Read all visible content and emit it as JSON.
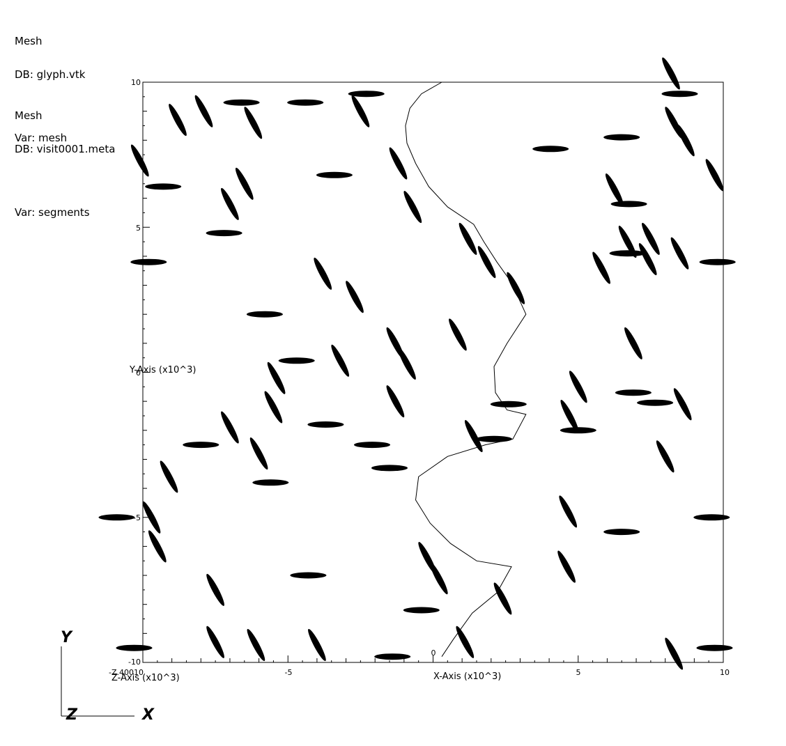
{
  "legends": [
    {
      "plot": "Mesh",
      "db": "DB: glyph.vtk",
      "var": "Var: mesh"
    },
    {
      "plot": "Mesh",
      "db": "DB: visit0001.meta",
      "var": "Var: segments"
    }
  ],
  "axes": {
    "x_title": "X-Axis (x10^3)",
    "y_title": "Y-Axis (x10^3)",
    "z_title": "Z-Axis (x10^3)",
    "x_ticks": [
      "-10",
      "-5",
      "0",
      "5",
      "10"
    ],
    "y_ticks": [
      "10",
      "5",
      "0",
      "-5",
      "-10"
    ],
    "z_tick_overlap": "-Z.40010",
    "xlim": [
      -10,
      10
    ],
    "ylim": [
      -10,
      10
    ]
  },
  "triad": {
    "y": "Y",
    "z": "Z",
    "x": "X"
  },
  "colors": {
    "background": "#ffffff",
    "ink": "#000000"
  },
  "curve": [
    [
      0.3,
      10.0
    ],
    [
      -0.4,
      9.6
    ],
    [
      -0.8,
      9.1
    ],
    [
      -0.95,
      8.5
    ],
    [
      -0.9,
      7.9
    ],
    [
      -0.6,
      7.2
    ],
    [
      -0.15,
      6.4
    ],
    [
      0.5,
      5.7
    ],
    [
      1.4,
      5.1
    ],
    [
      1.75,
      4.5
    ],
    [
      2.2,
      3.8
    ],
    [
      2.7,
      3.1
    ],
    [
      3.2,
      2.0
    ],
    [
      2.55,
      1.0
    ],
    [
      2.1,
      0.2
    ],
    [
      2.15,
      -0.7
    ],
    [
      2.55,
      -1.3
    ],
    [
      3.2,
      -1.45
    ],
    [
      2.75,
      -2.3
    ],
    [
      1.8,
      -2.5
    ],
    [
      0.5,
      -2.9
    ],
    [
      -0.5,
      -3.6
    ],
    [
      -0.6,
      -4.4
    ],
    [
      -0.1,
      -5.2
    ],
    [
      0.6,
      -5.9
    ],
    [
      1.5,
      -6.5
    ],
    [
      2.7,
      -6.7
    ],
    [
      2.2,
      -7.6
    ],
    [
      1.35,
      -8.3
    ],
    [
      0.7,
      -9.2
    ],
    [
      0.3,
      -9.8
    ]
  ],
  "glyphs": [
    [
      8.2,
      10.3,
      62
    ],
    [
      8.5,
      9.6,
      0
    ],
    [
      6.5,
      8.1,
      0
    ],
    [
      4.05,
      7.7,
      0
    ],
    [
      8.3,
      8.6,
      62
    ],
    [
      8.7,
      8.0,
      62
    ],
    [
      9.7,
      6.8,
      62
    ],
    [
      6.25,
      6.3,
      62
    ],
    [
      6.75,
      5.8,
      0
    ],
    [
      6.7,
      4.5,
      62
    ],
    [
      7.5,
      4.6,
      62
    ],
    [
      6.7,
      4.1,
      0
    ],
    [
      5.8,
      3.6,
      62
    ],
    [
      8.5,
      4.1,
      62
    ],
    [
      7.4,
      3.9,
      62
    ],
    [
      9.8,
      3.8,
      0
    ],
    [
      6.9,
      1.0,
      62
    ],
    [
      5.0,
      -0.5,
      62
    ],
    [
      6.9,
      -0.7,
      0
    ],
    [
      7.65,
      -1.05,
      0
    ],
    [
      8.6,
      -1.1,
      62
    ],
    [
      4.7,
      -1.5,
      62
    ],
    [
      5.0,
      -2.0,
      0
    ],
    [
      8.0,
      -2.9,
      62
    ],
    [
      9.6,
      -5.0,
      0
    ],
    [
      4.65,
      -4.8,
      62
    ],
    [
      6.5,
      -5.5,
      0
    ],
    [
      4.6,
      -6.7,
      62
    ],
    [
      8.3,
      -9.7,
      62
    ],
    [
      9.7,
      -9.5,
      0
    ],
    [
      -2.3,
      9.6,
      0
    ],
    [
      -2.5,
      9.0,
      62
    ],
    [
      -4.4,
      9.3,
      0
    ],
    [
      -6.6,
      9.3,
      0
    ],
    [
      -6.2,
      8.6,
      62
    ],
    [
      -7.9,
      9.0,
      62
    ],
    [
      -8.8,
      8.7,
      62
    ],
    [
      -10.1,
      7.3,
      62
    ],
    [
      -9.3,
      6.4,
      0
    ],
    [
      -1.2,
      7.2,
      62
    ],
    [
      -3.4,
      6.8,
      0
    ],
    [
      -6.5,
      6.5,
      62
    ],
    [
      -7.0,
      5.8,
      62
    ],
    [
      -0.7,
      5.7,
      62
    ],
    [
      -7.2,
      4.8,
      0
    ],
    [
      -9.8,
      3.8,
      0
    ],
    [
      -3.8,
      3.4,
      62
    ],
    [
      1.2,
      4.6,
      62
    ],
    [
      1.85,
      3.8,
      62
    ],
    [
      2.85,
      2.9,
      62
    ],
    [
      -2.7,
      2.6,
      62
    ],
    [
      -5.8,
      2.0,
      0
    ],
    [
      -1.3,
      1.0,
      62
    ],
    [
      0.85,
      1.3,
      62
    ],
    [
      -4.7,
      0.4,
      0
    ],
    [
      -3.2,
      0.4,
      62
    ],
    [
      -0.9,
      0.3,
      62
    ],
    [
      -5.4,
      -0.2,
      62
    ],
    [
      -1.3,
      -1.0,
      62
    ],
    [
      -5.5,
      -1.2,
      62
    ],
    [
      -3.7,
      -1.8,
      0
    ],
    [
      -7.0,
      -1.9,
      62
    ],
    [
      -8.0,
      -2.5,
      0
    ],
    [
      -2.1,
      -2.5,
      0
    ],
    [
      -6.0,
      -2.8,
      62
    ],
    [
      -9.1,
      -3.6,
      62
    ],
    [
      -5.6,
      -3.8,
      0
    ],
    [
      -1.5,
      -3.3,
      0
    ],
    [
      2.6,
      -1.1,
      0
    ],
    [
      1.4,
      -2.2,
      62
    ],
    [
      2.1,
      -2.3,
      0
    ],
    [
      -9.7,
      -5.0,
      62
    ],
    [
      -10.9,
      -5.0,
      0
    ],
    [
      -9.5,
      -6.0,
      62
    ],
    [
      -0.2,
      -6.4,
      62
    ],
    [
      0.2,
      -7.1,
      62
    ],
    [
      -4.3,
      -7.0,
      0
    ],
    [
      -7.5,
      -7.5,
      62
    ],
    [
      -0.4,
      -8.2,
      0
    ],
    [
      2.4,
      -7.8,
      62
    ],
    [
      -7.5,
      -9.3,
      62
    ],
    [
      -6.1,
      -9.4,
      62
    ],
    [
      -4.0,
      -9.4,
      62
    ],
    [
      -10.3,
      -9.5,
      0
    ],
    [
      1.1,
      -9.3,
      62
    ],
    [
      -1.4,
      -9.8,
      0
    ]
  ]
}
